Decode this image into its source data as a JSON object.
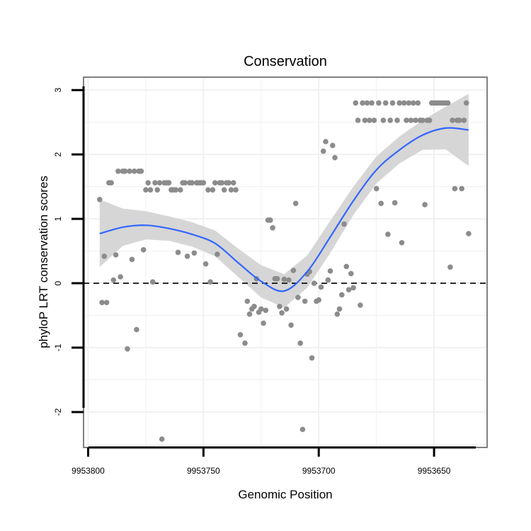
{
  "chart_data": {
    "type": "scatter",
    "title": "Conservation",
    "xlabel": "Genomic Position",
    "ylabel": "phyloP LRT conservation scores",
    "x_reversed": true,
    "xlim": [
      9953802,
      9953627
    ],
    "ylim": [
      -2.55,
      3.2
    ],
    "x_ticks": [
      9953800,
      9953750,
      9953700,
      9953650
    ],
    "x_tick_labels": [
      "9953800",
      "9953750",
      "9953700",
      "9953650"
    ],
    "y_ticks": [
      3,
      2,
      1,
      0,
      -1,
      -2
    ],
    "y_tick_labels": [
      "3",
      "2",
      "1",
      "0",
      "-1",
      "-2"
    ],
    "grid": true,
    "reference_line": {
      "y": 0,
      "style": "dashed"
    },
    "colors": {
      "points": "#8c8c8c",
      "smooth": "#3366ff",
      "ribbon": "#d6d6d6",
      "panel_border": "#808080",
      "grid": "#f0f0f0"
    },
    "series": [
      {
        "kind": "points",
        "points": [
          [
            9953795,
            1.3
          ],
          [
            9953794,
            -0.3
          ],
          [
            9953793,
            0.42
          ],
          [
            9953792,
            -0.3
          ],
          [
            9953791,
            1.56
          ],
          [
            9953790,
            1.56
          ],
          [
            9953789,
            0.05
          ],
          [
            9953788,
            0.44
          ],
          [
            9953787,
            1.74
          ],
          [
            9953786,
            0.1
          ],
          [
            9953785,
            1.74
          ],
          [
            9953784,
            1.74
          ],
          [
            9953783,
            -1.02
          ],
          [
            9953782,
            1.74
          ],
          [
            9953781,
            0.37
          ],
          [
            9953780,
            1.74
          ],
          [
            9953779,
            -0.72
          ],
          [
            9953778,
            1.74
          ],
          [
            9953777,
            1.74
          ],
          [
            9953776,
            0.52
          ],
          [
            9953775,
            1.45
          ],
          [
            9953774,
            1.56
          ],
          [
            9953773,
            1.45
          ],
          [
            9953772,
            0.02
          ],
          [
            9953771,
            1.56
          ],
          [
            9953770,
            1.45
          ],
          [
            9953769,
            1.56
          ],
          [
            9953768,
            -2.42
          ],
          [
            9953767,
            1.56
          ],
          [
            9953766,
            1.56
          ],
          [
            9953765,
            1.56
          ],
          [
            9953764,
            1.45
          ],
          [
            9953763,
            1.45
          ],
          [
            9953762,
            1.45
          ],
          [
            9953761,
            0.48
          ],
          [
            9953760,
            1.45
          ],
          [
            9953759,
            1.56
          ],
          [
            9953758,
            1.56
          ],
          [
            9953757,
            0.42
          ],
          [
            9953756,
            1.56
          ],
          [
            9953755,
            1.56
          ],
          [
            9953754,
            0.47
          ],
          [
            9953753,
            1.56
          ],
          [
            9953752,
            1.56
          ],
          [
            9953751,
            1.56
          ],
          [
            9953750,
            1.56
          ],
          [
            9953749,
            0.3
          ],
          [
            9953748,
            1.45
          ],
          [
            9953747,
            0.02
          ],
          [
            9953746,
            1.45
          ],
          [
            9953745,
            1.56
          ],
          [
            9953744,
            0.45
          ],
          [
            9953743,
            1.56
          ],
          [
            9953742,
            1.56
          ],
          [
            9953741,
            1.45
          ],
          [
            9953740,
            1.56
          ],
          [
            9953739,
            1.56
          ],
          [
            9953738,
            1.45
          ],
          [
            9953737,
            1.56
          ],
          [
            9953736,
            1.45
          ],
          [
            9953734,
            -0.8
          ],
          [
            9953732,
            -0.93
          ],
          [
            9953731,
            -0.28
          ],
          [
            9953730,
            -0.48
          ],
          [
            9953729,
            -0.4
          ],
          [
            9953728,
            -0.36
          ],
          [
            9953727,
            0.07
          ],
          [
            9953726,
            -0.45
          ],
          [
            9953725,
            -0.4
          ],
          [
            9953724,
            -0.62
          ],
          [
            9953723,
            -0.42
          ],
          [
            9953722,
            0.98
          ],
          [
            9953721,
            0.98
          ],
          [
            9953720,
            0.86
          ],
          [
            9953719,
            0.07
          ],
          [
            9953718,
            0.07
          ],
          [
            9953717,
            -0.36
          ],
          [
            9953716,
            -0.46
          ],
          [
            9953715,
            0.06
          ],
          [
            9953714,
            -0.4
          ],
          [
            9953713,
            0.05
          ],
          [
            9953712,
            -0.65
          ],
          [
            9953711,
            0.2
          ],
          [
            9953710,
            1.24
          ],
          [
            9953709,
            -0.22
          ],
          [
            9953708,
            -0.93
          ],
          [
            9953707,
            -2.27
          ],
          [
            9953706,
            -0.28
          ],
          [
            9953705,
            0.14
          ],
          [
            9953704,
            0.18
          ],
          [
            9953703,
            -1.16
          ],
          [
            9953702,
            0.0
          ],
          [
            9953701,
            -0.28
          ],
          [
            9953700,
            -0.26
          ],
          [
            9953699,
            -0.06
          ],
          [
            9953698,
            2.05
          ],
          [
            9953697,
            2.2
          ],
          [
            9953696,
            0.05
          ],
          [
            9953695,
            0.19
          ],
          [
            9953694,
            2.14
          ],
          [
            9953693,
            1.95
          ],
          [
            9953692,
            -0.48
          ],
          [
            9953691,
            -0.4
          ],
          [
            9953690,
            -0.18
          ],
          [
            9953689,
            0.92
          ],
          [
            9953688,
            0.26
          ],
          [
            9953687,
            -0.1
          ],
          [
            9953686,
            0.15
          ],
          [
            9953685,
            -0.07
          ],
          [
            9953684,
            2.8
          ],
          [
            9953683,
            2.53
          ],
          [
            9953682,
            -0.34
          ],
          [
            9953681,
            2.8
          ],
          [
            9953680,
            2.53
          ],
          [
            9953679,
            2.8
          ],
          [
            9953678,
            2.53
          ],
          [
            9953677,
            2.8
          ],
          [
            9953676,
            2.53
          ],
          [
            9953675,
            1.47
          ],
          [
            9953674,
            2.8
          ],
          [
            9953673,
            1.24
          ],
          [
            9953672,
            2.53
          ],
          [
            9953671,
            2.8
          ],
          [
            9953670,
            0.76
          ],
          [
            9953669,
            2.53
          ],
          [
            9953668,
            2.8
          ],
          [
            9953667,
            1.25
          ],
          [
            9953666,
            2.53
          ],
          [
            9953665,
            2.8
          ],
          [
            9953664,
            0.63
          ],
          [
            9953663,
            2.8
          ],
          [
            9953662,
            2.53
          ],
          [
            9953661,
            2.8
          ],
          [
            9953660,
            2.53
          ],
          [
            9953659,
            2.8
          ],
          [
            9953658,
            2.53
          ],
          [
            9953657,
            2.8
          ],
          [
            9953656,
            2.53
          ],
          [
            9953655,
            2.53
          ],
          [
            9953654,
            1.22
          ],
          [
            9953653,
            2.53
          ],
          [
            9953652,
            2.53
          ],
          [
            9953651,
            2.8
          ],
          [
            9953650,
            2.8
          ],
          [
            9953649,
            2.8
          ],
          [
            9953648,
            2.8
          ],
          [
            9953647,
            2.8
          ],
          [
            9953646,
            2.8
          ],
          [
            9953645,
            2.8
          ],
          [
            9953644,
            2.8
          ],
          [
            9953643,
            0.25
          ],
          [
            9953642,
            2.53
          ],
          [
            9953641,
            1.47
          ],
          [
            9953640,
            2.53
          ],
          [
            9953639,
            2.53
          ],
          [
            9953638,
            1.47
          ],
          [
            9953637,
            2.53
          ],
          [
            9953636,
            2.8
          ],
          [
            9953635,
            0.77
          ]
        ]
      },
      {
        "kind": "smooth",
        "x": [
          9953795,
          9953785,
          9953775,
          9953765,
          9953755,
          9953745,
          9953735,
          9953725,
          9953715,
          9953705,
          9953695,
          9953685,
          9953675,
          9953665,
          9953655,
          9953645,
          9953635
        ],
        "y": [
          0.77,
          0.87,
          0.9,
          0.85,
          0.76,
          0.62,
          0.32,
          0.03,
          -0.12,
          0.18,
          0.72,
          1.28,
          1.76,
          2.07,
          2.3,
          2.41,
          2.38
        ],
        "lower": [
          0.25,
          0.58,
          0.68,
          0.66,
          0.57,
          0.42,
          0.1,
          -0.22,
          -0.38,
          -0.07,
          0.47,
          1.06,
          1.55,
          1.86,
          2.07,
          2.08,
          1.82
        ],
        "upper": [
          1.3,
          1.16,
          1.12,
          1.04,
          0.95,
          0.82,
          0.54,
          0.28,
          0.14,
          0.43,
          0.97,
          1.5,
          1.97,
          2.28,
          2.53,
          2.74,
          2.94
        ]
      }
    ]
  }
}
